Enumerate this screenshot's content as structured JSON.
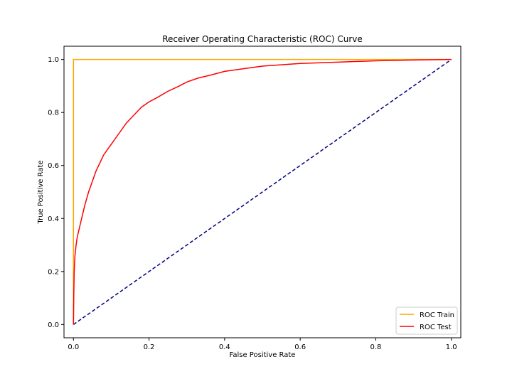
{
  "chart_data": {
    "type": "line",
    "title": "Receiver Operating Characteristic (ROC) Curve",
    "xlabel": "False Positive Rate",
    "ylabel": "True Positive Rate",
    "xlim": [
      -0.025,
      1.025
    ],
    "ylim": [
      -0.05,
      1.05
    ],
    "xticks": [
      0.0,
      0.2,
      0.4,
      0.6,
      0.8,
      1.0
    ],
    "yticks": [
      0.0,
      0.2,
      0.4,
      0.6,
      0.8,
      1.0
    ],
    "xtick_labels": [
      "0.0",
      "0.2",
      "0.4",
      "0.6",
      "0.8",
      "1.0"
    ],
    "ytick_labels": [
      "0.0",
      "0.2",
      "0.4",
      "0.6",
      "0.8",
      "1.0"
    ],
    "grid": false,
    "legend_position": "lower-right",
    "series": [
      {
        "name": "ROC Train",
        "color": "#ffa500",
        "style": "solid",
        "x": [
          0.0,
          0.0,
          1.0
        ],
        "y": [
          0.0,
          1.0,
          1.0
        ]
      },
      {
        "name": "ROC Test",
        "color": "#ff0000",
        "style": "solid",
        "x": [
          0.0,
          0.001,
          0.002,
          0.004,
          0.007,
          0.01,
          0.015,
          0.02,
          0.03,
          0.04,
          0.05,
          0.06,
          0.07,
          0.08,
          0.09,
          0.1,
          0.12,
          0.14,
          0.16,
          0.18,
          0.2,
          0.22,
          0.25,
          0.28,
          0.3,
          0.33,
          0.36,
          0.4,
          0.45,
          0.5,
          0.55,
          0.6,
          0.7,
          0.8,
          0.9,
          1.0
        ],
        "y": [
          0.0,
          0.12,
          0.2,
          0.26,
          0.3,
          0.33,
          0.36,
          0.39,
          0.45,
          0.5,
          0.54,
          0.58,
          0.61,
          0.64,
          0.66,
          0.68,
          0.72,
          0.76,
          0.79,
          0.82,
          0.84,
          0.855,
          0.88,
          0.9,
          0.915,
          0.93,
          0.94,
          0.955,
          0.965,
          0.975,
          0.98,
          0.985,
          0.99,
          0.995,
          0.998,
          1.0
        ]
      },
      {
        "name": "",
        "color": "#000080",
        "style": "dashed",
        "x": [
          0.0,
          1.0
        ],
        "y": [
          0.0,
          1.0
        ]
      }
    ]
  }
}
